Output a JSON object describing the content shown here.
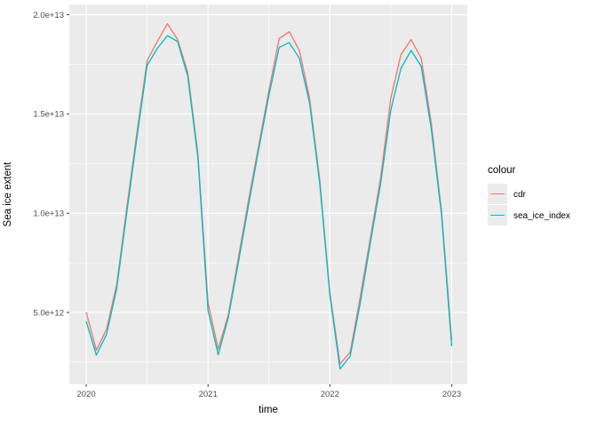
{
  "chart_data": {
    "type": "line",
    "title": "",
    "xlabel": "time",
    "ylabel": "Sea ice extent",
    "legend_title": "colour",
    "legend_position": "right",
    "grid": true,
    "panel_background": "#EBEBEB",
    "grid_color": "#FFFFFF",
    "tick_label_color": "#4D4D4D",
    "tick_mark_color": "#333333",
    "xlim": [
      2019.861,
      2023.128
    ],
    "ylim": [
      1380000000000.0,
      20520000000000.0
    ],
    "x_ticks": [
      {
        "value": 2020,
        "label": "2020"
      },
      {
        "value": 2021,
        "label": "2021"
      },
      {
        "value": 2022,
        "label": "2022"
      },
      {
        "value": 2023,
        "label": "2023"
      }
    ],
    "y_ticks": [
      {
        "value": 5000000000000.0,
        "label": "5.0e+12"
      },
      {
        "value": 10000000000000.0,
        "label": "1.0e+13"
      },
      {
        "value": 15000000000000.0,
        "label": "1.5e+13"
      },
      {
        "value": 20000000000000.0,
        "label": "2.0e+13"
      }
    ],
    "x_minor_ticks": [
      2020.5,
      2021.5,
      2022.5
    ],
    "y_minor_ticks": [
      2500000000000.0,
      7500000000000.0,
      12500000000000.0,
      17500000000000.0
    ],
    "months": [
      "2020-01",
      "2020-02",
      "2020-03",
      "2020-04",
      "2020-05",
      "2020-06",
      "2020-07",
      "2020-08",
      "2020-09",
      "2020-10",
      "2020-11",
      "2020-12",
      "2021-01",
      "2021-02",
      "2021-03",
      "2021-04",
      "2021-05",
      "2021-06",
      "2021-07",
      "2021-08",
      "2021-09",
      "2021-10",
      "2021-11",
      "2021-12",
      "2022-01",
      "2022-02",
      "2022-03",
      "2022-04",
      "2022-05",
      "2022-06",
      "2022-07",
      "2022-08",
      "2022-09",
      "2022-10",
      "2022-11",
      "2022-12",
      "2023-01"
    ],
    "series": [
      {
        "name": "cdr",
        "color": "#F8766D",
        "values": [
          5000000000000.0,
          3100000000000.0,
          4150000000000.0,
          6400000000000.0,
          10300000000000.0,
          14100000000000.0,
          17700000000000.0,
          18650000000000.0,
          19550000000000.0,
          18750000000000.0,
          17100000000000.0,
          13000000000000.0,
          5500000000000.0,
          3150000000000.0,
          4900000000000.0,
          7800000000000.0,
          10700000000000.0,
          13450000000000.0,
          16200000000000.0,
          18800000000000.0,
          19150000000000.0,
          18200000000000.0,
          15800000000000.0,
          11700000000000.0,
          6000000000000.0,
          2400000000000.0,
          3000000000000.0,
          5800000000000.0,
          8800000000000.0,
          11800000000000.0,
          15800000000000.0,
          18000000000000.0,
          18750000000000.0,
          17800000000000.0,
          14500000000000.0,
          10100000000000.0,
          3600000000000.0
        ]
      },
      {
        "name": "sea_ice_index",
        "color": "#00BFC4",
        "values": [
          4550000000000.0,
          2850000000000.0,
          3900000000000.0,
          6200000000000.0,
          10050000000000.0,
          13850000000000.0,
          17450000000000.0,
          18300000000000.0,
          18950000000000.0,
          18650000000000.0,
          16900000000000.0,
          12800000000000.0,
          5100000000000.0,
          2870000000000.0,
          4750000000000.0,
          7550000000000.0,
          10450000000000.0,
          13250000000000.0,
          15950000000000.0,
          18350000000000.0,
          18600000000000.0,
          17800000000000.0,
          15550000000000.0,
          11500000000000.0,
          5850000000000.0,
          2150000000000.0,
          2800000000000.0,
          5500000000000.0,
          8550000000000.0,
          11500000000000.0,
          15200000000000.0,
          17300000000000.0,
          18200000000000.0,
          17400000000000.0,
          14200000000000.0,
          9900000000000.0,
          3300000000000.0
        ]
      }
    ]
  }
}
